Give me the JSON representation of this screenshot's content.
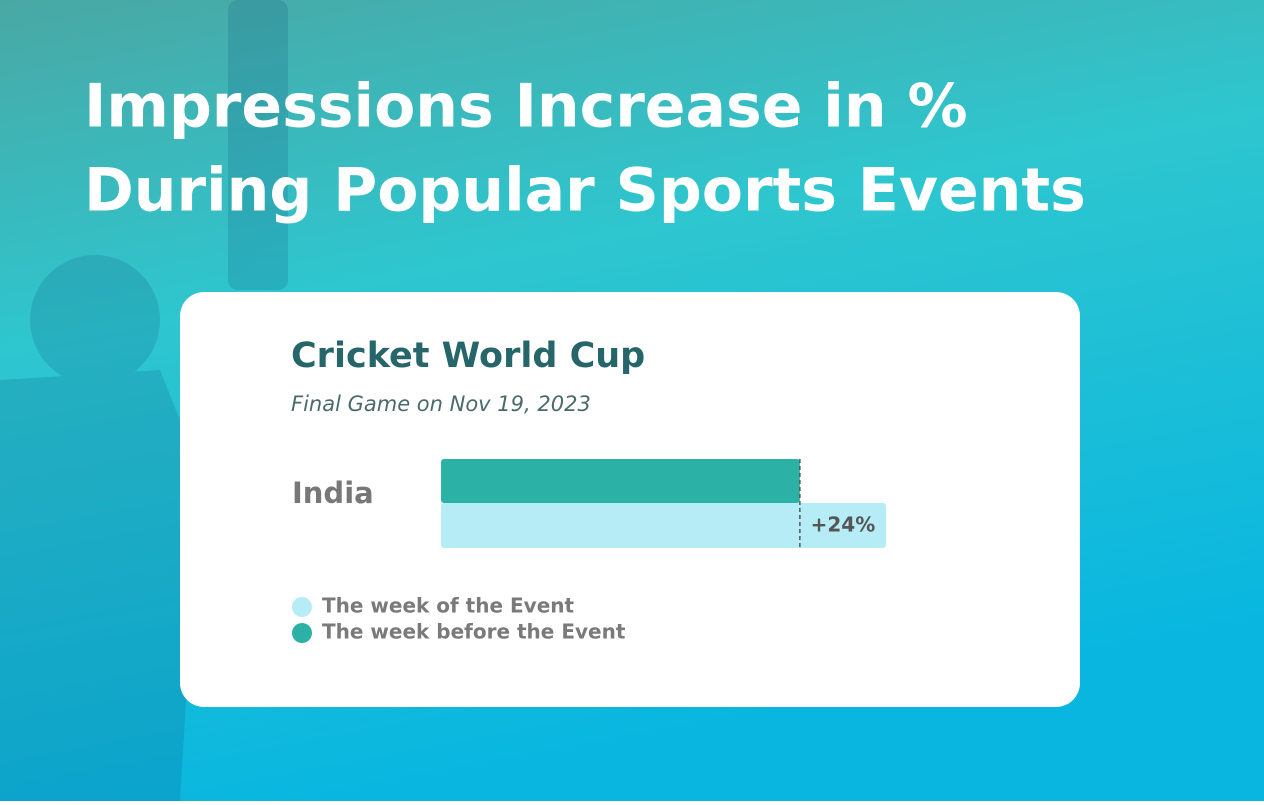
{
  "header": {
    "title_lines": [
      "Impressions Increase in %",
      "During Popular Sports Events"
    ]
  },
  "chart_data": {
    "type": "bar",
    "orientation": "horizontal",
    "title": "Cricket World Cup",
    "subtitle": "Final Game on Nov 19, 2023",
    "categories": [
      "India"
    ],
    "series": [
      {
        "name": "The week of the Event",
        "color": "#b5ecf6",
        "values": [
          24
        ],
        "value_labels": [
          "+24%"
        ]
      },
      {
        "name": "The week before the Event",
        "color": "#2cb1a6",
        "values": [
          100
        ]
      }
    ]
  }
}
